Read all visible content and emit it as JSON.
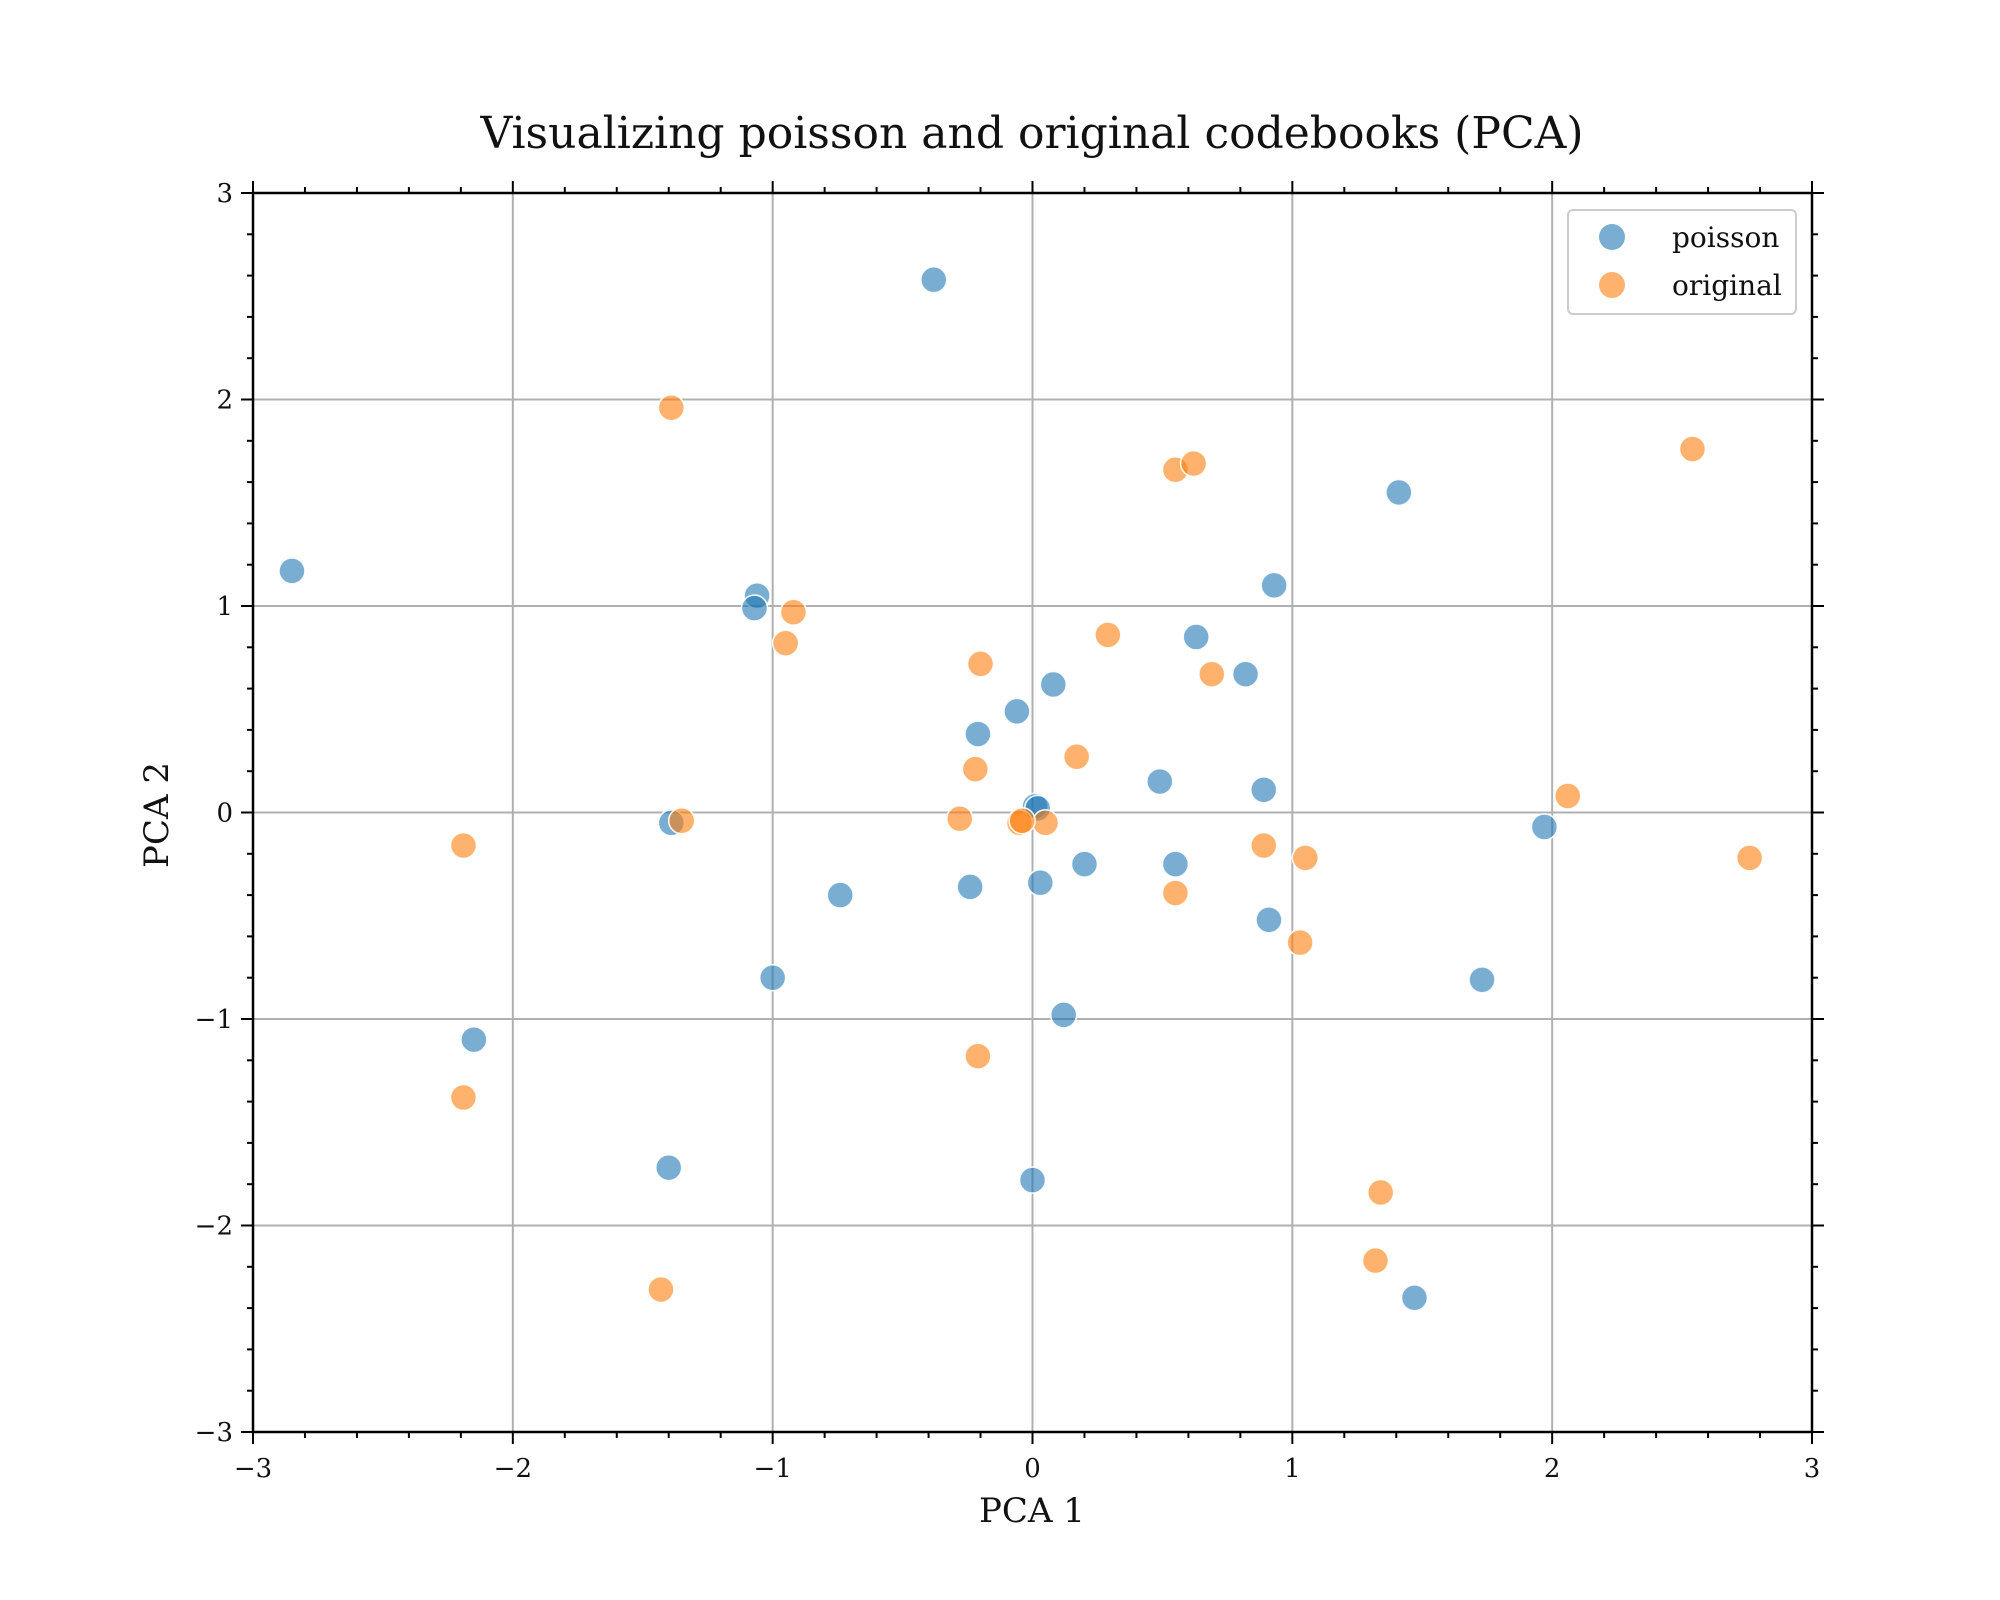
{
  "chart_data": {
    "type": "scatter",
    "title": "Visualizing poisson and original codebooks (PCA)",
    "xlabel": "PCA 1",
    "ylabel": "PCA 2",
    "xlim": [
      -3,
      3
    ],
    "ylim": [
      -3,
      3
    ],
    "xticks": [
      -3,
      -2,
      -1,
      0,
      1,
      2,
      3
    ],
    "yticks": [
      -3,
      -2,
      -1,
      0,
      1,
      2,
      3
    ],
    "xtick_labels": [
      "−3",
      "−2",
      "−1",
      "0",
      "1",
      "2",
      "3"
    ],
    "ytick_labels": [
      "−3",
      "−2",
      "−1",
      "0",
      "1",
      "2",
      "3"
    ],
    "grid": true,
    "legend_position": "top-right",
    "series": [
      {
        "name": "poisson",
        "color": "#1f77b4",
        "points": [
          [
            -2.85,
            1.17
          ],
          [
            -0.38,
            2.58
          ],
          [
            1.41,
            1.55
          ],
          [
            -1.06,
            1.05
          ],
          [
            -1.07,
            0.99
          ],
          [
            0.93,
            1.1
          ],
          [
            0.63,
            0.85
          ],
          [
            0.82,
            0.67
          ],
          [
            0.08,
            0.62
          ],
          [
            -0.06,
            0.49
          ],
          [
            -0.21,
            0.38
          ],
          [
            0.49,
            0.15
          ],
          [
            0.89,
            0.11
          ],
          [
            1.97,
            -0.07
          ],
          [
            0.01,
            0.03
          ],
          [
            0.02,
            0.02
          ],
          [
            -1.39,
            -0.05
          ],
          [
            -0.74,
            -0.4
          ],
          [
            -0.24,
            -0.36
          ],
          [
            0.03,
            -0.34
          ],
          [
            0.2,
            -0.25
          ],
          [
            0.55,
            -0.25
          ],
          [
            0.91,
            -0.52
          ],
          [
            -1.0,
            -0.8
          ],
          [
            1.73,
            -0.81
          ],
          [
            0.12,
            -0.98
          ],
          [
            -2.15,
            -1.1
          ],
          [
            -1.4,
            -1.72
          ],
          [
            0.0,
            -1.78
          ],
          [
            1.47,
            -2.35
          ]
        ]
      },
      {
        "name": "original",
        "color": "#ff7f0e",
        "points": [
          [
            -1.39,
            1.96
          ],
          [
            2.54,
            1.76
          ],
          [
            0.55,
            1.66
          ],
          [
            0.62,
            1.69
          ],
          [
            -0.92,
            0.97
          ],
          [
            -0.95,
            0.82
          ],
          [
            -0.2,
            0.72
          ],
          [
            0.29,
            0.86
          ],
          [
            0.69,
            0.67
          ],
          [
            0.17,
            0.27
          ],
          [
            -0.22,
            0.21
          ],
          [
            2.06,
            0.08
          ],
          [
            -0.28,
            -0.03
          ],
          [
            -1.35,
            -0.04
          ],
          [
            0.05,
            -0.05
          ],
          [
            -0.05,
            -0.05
          ],
          [
            -0.04,
            -0.04
          ],
          [
            -2.19,
            -0.16
          ],
          [
            0.89,
            -0.16
          ],
          [
            1.05,
            -0.22
          ],
          [
            2.76,
            -0.22
          ],
          [
            0.55,
            -0.39
          ],
          [
            1.03,
            -0.63
          ],
          [
            -0.21,
            -1.18
          ],
          [
            -2.19,
            -1.38
          ],
          [
            1.34,
            -1.84
          ],
          [
            1.32,
            -2.17
          ],
          [
            -1.43,
            -2.31
          ]
        ]
      }
    ]
  }
}
